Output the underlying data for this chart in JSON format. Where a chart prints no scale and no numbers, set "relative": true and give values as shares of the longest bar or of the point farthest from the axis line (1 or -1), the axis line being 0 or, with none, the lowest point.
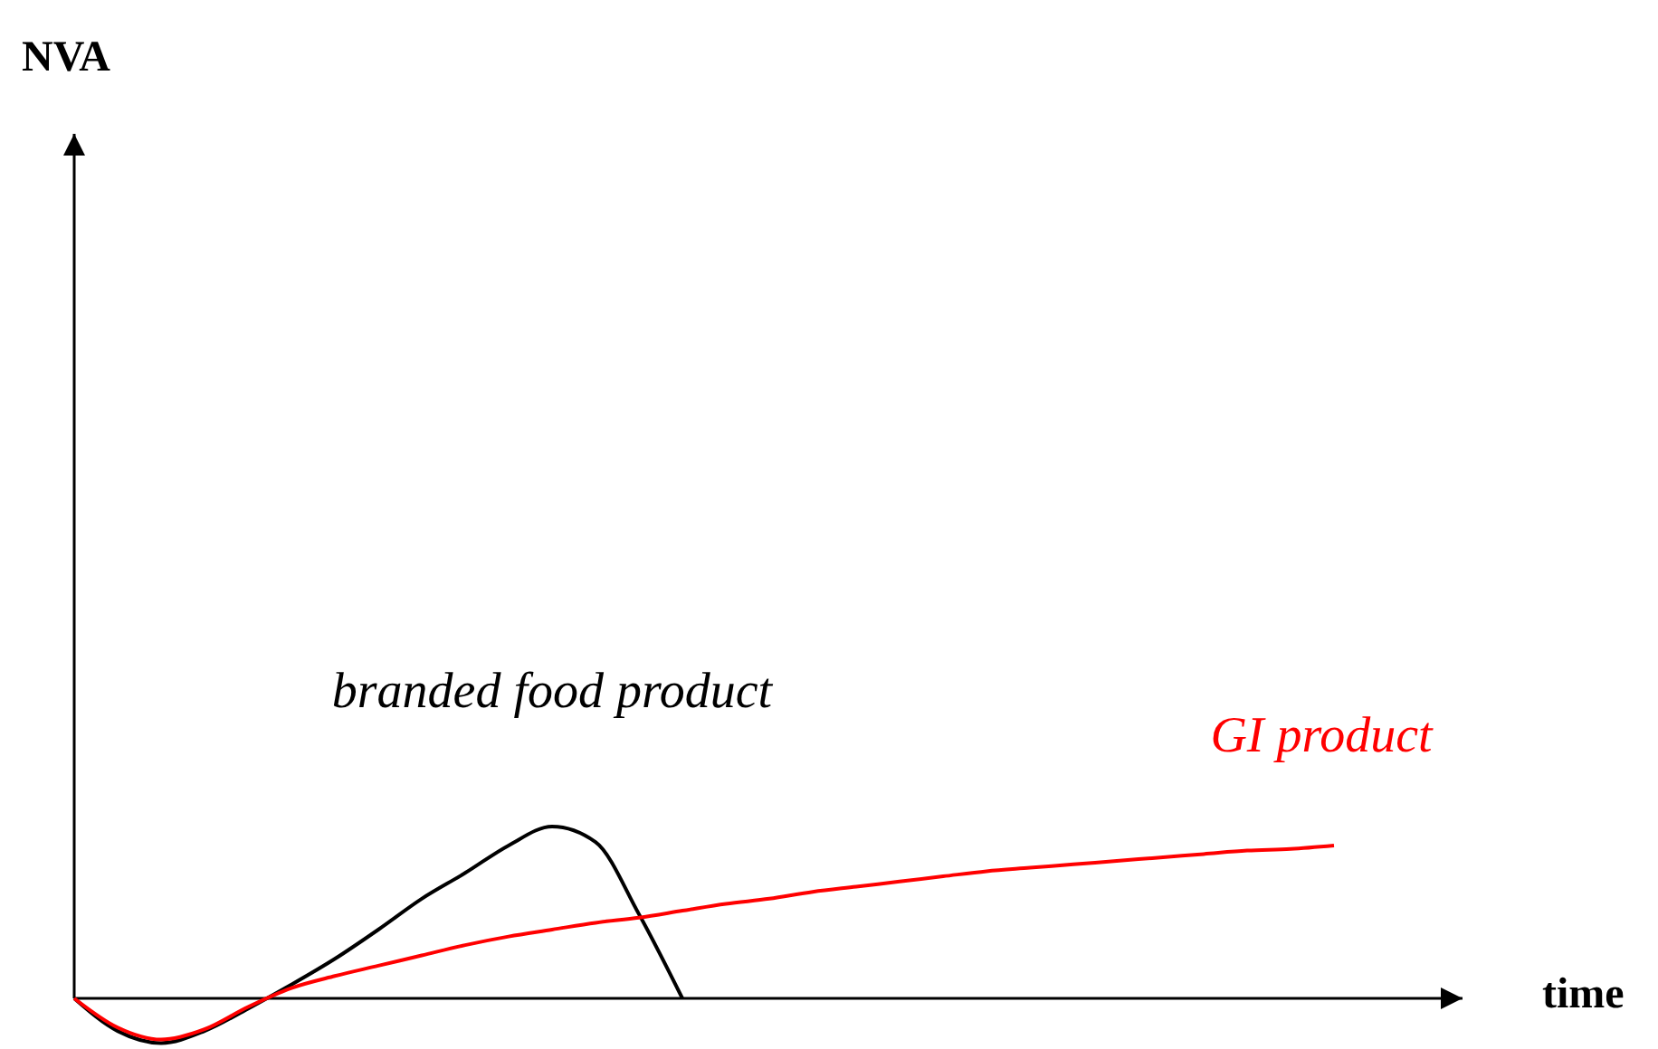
{
  "chart_data": {
    "type": "line",
    "relative": true,
    "xlabel": "time",
    "annotations": [
      "NVA"
    ],
    "line_style": "solid",
    "marker": "none",
    "legend": false,
    "categories": [
      null,
      null,
      null,
      null,
      null,
      null,
      null,
      null,
      null,
      null,
      null,
      null,
      null,
      null,
      null,
      null,
      null,
      null,
      null,
      null,
      null,
      null,
      null,
      null,
      null,
      null,
      null,
      null,
      null,
      null,
      null,
      null,
      null
    ],
    "series": [
      {
        "name": "branded food product",
        "color": "#000000",
        "values": [
          0,
          -0.19,
          -0.26,
          -0.19,
          -0.06,
          0.08,
          0.23,
          0.4,
          0.58,
          0.73,
          0.89,
          1,
          0.91,
          0.49,
          0,
          null,
          null,
          null,
          null,
          null,
          null,
          null,
          null,
          null,
          null,
          null,
          null,
          null,
          null,
          null,
          null,
          null,
          null
        ]
      },
      {
        "name": "GI product",
        "color": "#ff0000",
        "values": [
          0,
          -0.17,
          -0.24,
          -0.18,
          -0.05,
          0.06,
          0.13,
          0.19,
          0.25,
          0.31,
          0.36,
          0.4,
          0.44,
          0.47,
          0.51,
          0.55,
          0.58,
          0.62,
          0.65,
          0.68,
          0.71,
          0.74,
          0.76,
          0.78,
          0.8,
          0.82,
          0.84,
          0.86,
          0.87,
          0.89,
          null,
          null,
          null
        ]
      }
    ]
  }
}
